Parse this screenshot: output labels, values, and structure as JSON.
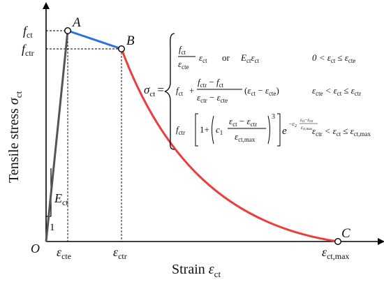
{
  "axes": {
    "origin": "O",
    "y_title": "Tensile stress",
    "y_title_symbol": "σ",
    "y_title_sub": "ct",
    "x_title": "Strain",
    "x_title_symbol": "ε",
    "x_title_sub": "ct"
  },
  "points": {
    "A": "A",
    "B": "B",
    "C": "C"
  },
  "y_ticks": [
    {
      "sym": "f",
      "sub": "ct"
    },
    {
      "sym": "f",
      "sub": "ctr"
    }
  ],
  "x_ticks": [
    {
      "sym": "ε",
      "sub": "cte"
    },
    {
      "sym": "ε",
      "sub": "ctr"
    },
    {
      "sym": "ε",
      "sub": "ct,max"
    }
  ],
  "slope": {
    "label_sym": "E",
    "label_sub": "ct",
    "unit": "1"
  },
  "equation": {
    "lhs_sym": "σ",
    "lhs_sub": "ct",
    "eq": "=",
    "row1_or": "or",
    "operator_plus": "+",
    "row3_one": "1+",
    "row3_c1": "c",
    "row3_c1_sub": "1",
    "row3_power": "3",
    "row3_exp": "−c",
    "row3_exp_sub": "2",
    "cond1": "0 < ε",
    "cond_le": "≤ ε",
    "cond_lt": "< ε",
    "sub_ct": "ct",
    "sub_cte": "cte",
    "sub_ctr": "ctr",
    "sub_ctmax": "ct,max"
  },
  "colors": {
    "elastic": "#555555",
    "plateau": "#2f6fe0",
    "softening": "#ef3b3b",
    "axis": "#000000"
  }
}
